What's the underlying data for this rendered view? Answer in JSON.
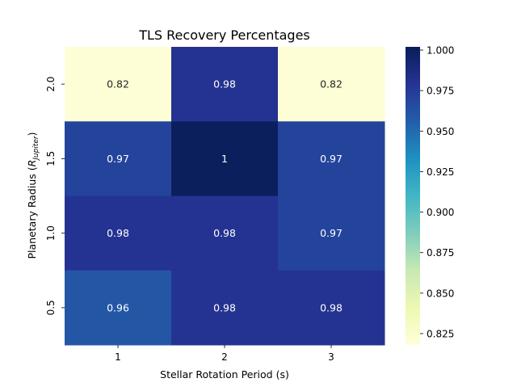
{
  "chart_data": {
    "type": "heatmap",
    "title": "TLS Recovery Percentages",
    "xlabel": "Stellar Rotation Period (s)",
    "ylabel_main": "Planetary Radius (",
    "ylabel_symbol": "R",
    "ylabel_subscript": "Jupiter",
    "ylabel_close": ")",
    "x_categories": [
      "1",
      "2",
      "3"
    ],
    "y_categories": [
      "2.0",
      "1.5",
      "1.0",
      "0.5"
    ],
    "values": [
      [
        0.82,
        0.98,
        0.82
      ],
      [
        0.97,
        1.0,
        0.97
      ],
      [
        0.98,
        0.98,
        0.97
      ],
      [
        0.96,
        0.98,
        0.98
      ]
    ],
    "annotations": [
      [
        "0.82",
        "0.98",
        "0.82"
      ],
      [
        "0.97",
        "1",
        "0.97"
      ],
      [
        "0.98",
        "0.98",
        "0.97"
      ],
      [
        "0.96",
        "0.98",
        "0.98"
      ]
    ],
    "colormap": "YlGnBu",
    "colorbar": {
      "vmin": 0.818,
      "vmax": 1.002,
      "ticks": [
        0.825,
        0.85,
        0.875,
        0.9,
        0.925,
        0.95,
        0.975,
        1.0
      ],
      "tick_labels": [
        "0.825",
        "0.850",
        "0.875",
        "0.900",
        "0.925",
        "0.950",
        "0.975",
        "1.000"
      ]
    },
    "colors": [
      "#ffffd9",
      "#edf8b1",
      "#c7e9b4",
      "#7fcdbb",
      "#41b6c4",
      "#1d91c0",
      "#225ea8",
      "#253494",
      "#081d58"
    ]
  }
}
